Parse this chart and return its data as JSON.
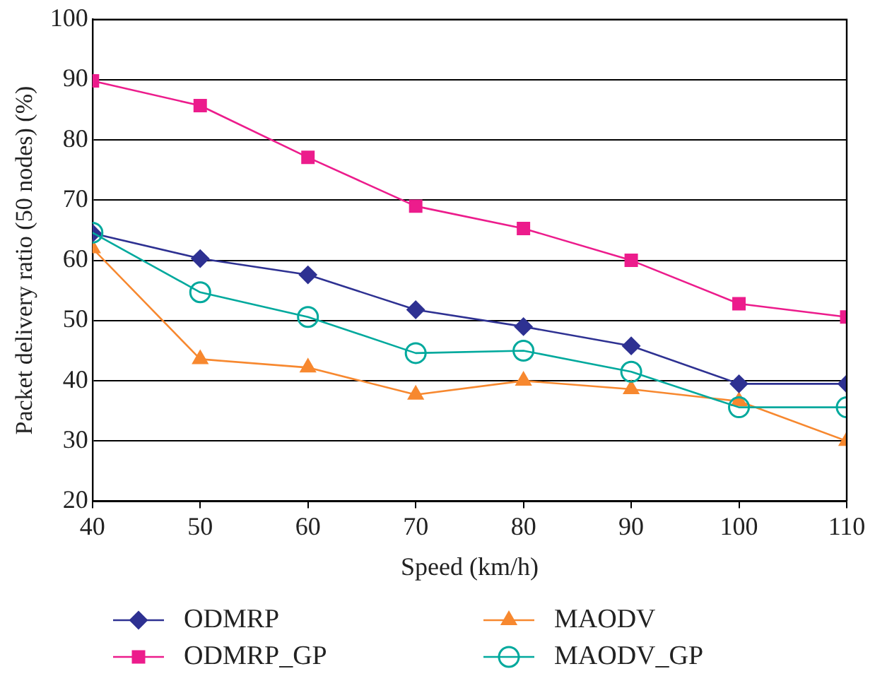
{
  "chart_data": {
    "type": "line",
    "xlabel": "Speed (km/h)",
    "ylabel": "Packet delivery ratio (50 nodes) (%)",
    "x": [
      40,
      50,
      60,
      70,
      80,
      90,
      100,
      110
    ],
    "xlim": [
      40,
      110
    ],
    "xticks": [
      40,
      50,
      60,
      70,
      80,
      90,
      100,
      110
    ],
    "ylim": [
      20,
      100
    ],
    "yticks": [
      20,
      30,
      40,
      50,
      60,
      70,
      80,
      90,
      100
    ],
    "grid": "y",
    "legend": "bottom",
    "line_style": "solid",
    "series": [
      {
        "name": "ODMRP",
        "color": "#2e3192",
        "marker": "diamond",
        "values": [
          64.5,
          60.3,
          57.6,
          51.8,
          49,
          45.8,
          39.5,
          39.5
        ]
      },
      {
        "name": "ODMRP_GP",
        "color": "#ec1c8c",
        "marker": "square",
        "values": [
          89.8,
          85.7,
          77.1,
          69,
          65.3,
          60,
          52.8,
          50.6
        ]
      },
      {
        "name": "MAODV",
        "color": "#f7882f",
        "marker": "triangle",
        "values": [
          62,
          43.6,
          42.2,
          37.7,
          40,
          38.6,
          36.6,
          30
        ]
      },
      {
        "name": "MAODV_GP",
        "color": "#00a99d",
        "marker": "circle",
        "values": [
          64.6,
          54.7,
          50.6,
          44.6,
          45,
          41.5,
          35.6,
          35.6
        ]
      }
    ]
  }
}
